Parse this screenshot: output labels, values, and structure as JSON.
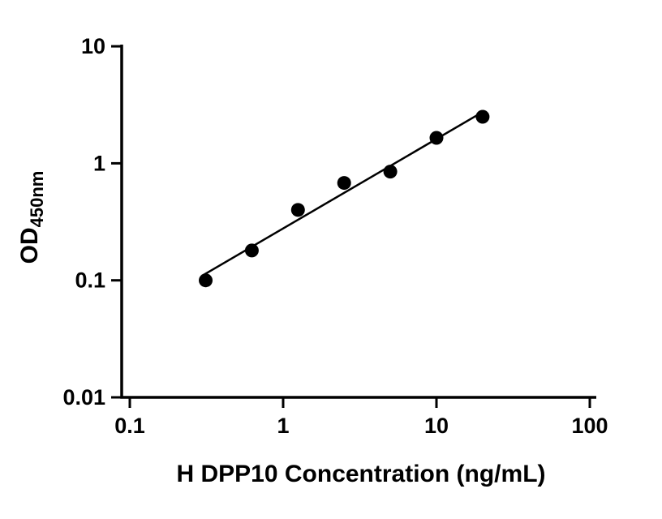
{
  "chart_data": {
    "type": "scatter",
    "title": "",
    "xlabel": "H DPP10 Concentration (ng/mL)",
    "ylabel": "OD",
    "ylabel_subscript": "450nm",
    "x_scale": "log",
    "y_scale": "log",
    "xlim": [
      0.1,
      100
    ],
    "ylim": [
      0.01,
      10
    ],
    "x_ticks": [
      0.1,
      1,
      10,
      100
    ],
    "x_tick_labels": [
      "0.1",
      "1",
      "10",
      "100"
    ],
    "y_ticks": [
      0.01,
      0.1,
      1,
      10
    ],
    "y_tick_labels": [
      "0.01",
      "0.1",
      "1",
      "10"
    ],
    "grid": false,
    "legend": false,
    "marker_color": "#000000",
    "line_color": "#000000",
    "series": [
      {
        "x": [
          0.3125,
          0.625,
          1.25,
          2.5,
          5,
          10,
          20
        ],
        "y": [
          0.1,
          0.18,
          0.4,
          0.68,
          0.85,
          1.65,
          2.5
        ],
        "marker": "filled-circle",
        "fit": "power"
      }
    ]
  }
}
